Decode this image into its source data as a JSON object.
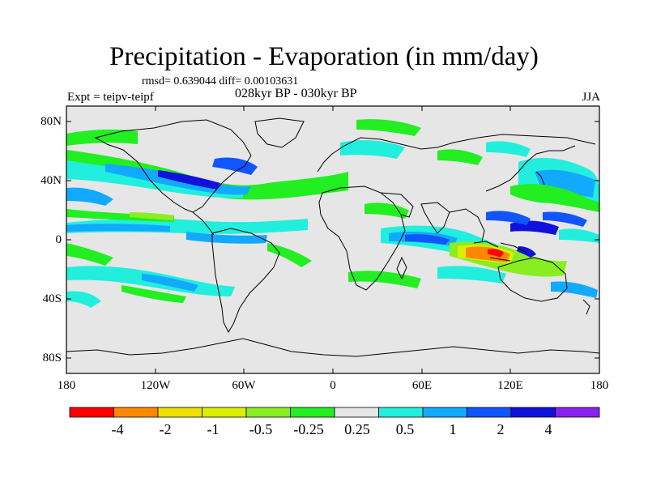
{
  "title": "Precipitation - Evaporation (in mm/day)",
  "stats": "rmsd= 0.639044 diff= 0.00103631",
  "subtitle": "028kyr BP - 030kyr BP",
  "experiment": "Expt = teipv-teipf",
  "season": "JJA",
  "map": {
    "background_color": "#e6e6e6",
    "coastline_color": "#000000",
    "y_ticks": [
      "80N",
      "40N",
      "0",
      "40S",
      "80S"
    ],
    "x_ticks": [
      "180",
      "120W",
      "60W",
      "0",
      "60E",
      "120E",
      "180"
    ]
  },
  "colorbar": {
    "colors": [
      "#ff0000",
      "#ff8800",
      "#f0e000",
      "#ddee00",
      "#88ee22",
      "#22ee22",
      "#e6e6e6",
      "#22eedd",
      "#11aaff",
      "#1155ff",
      "#1111dd",
      "#8822ee"
    ],
    "labels": [
      "-4",
      "-2",
      "-1",
      "-0.5",
      "-0.25",
      "0.25",
      "0.5",
      "1",
      "2",
      "4"
    ]
  }
}
